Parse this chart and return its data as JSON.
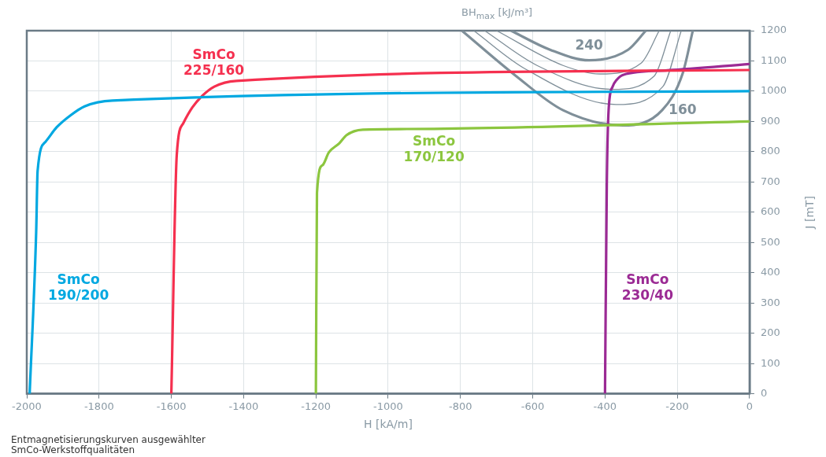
{
  "chart_data": {
    "type": "line",
    "xlabel": "H [kA/m]",
    "ylabel": "J [mT]",
    "xlim": [
      -2000,
      0
    ],
    "xticks": [
      -2000,
      -1800,
      -1600,
      -1400,
      -1200,
      -1000,
      -800,
      -600,
      -400,
      -200,
      0
    ],
    "ylim": [
      0,
      1200
    ],
    "yticks": [
      0,
      100,
      200,
      300,
      400,
      500,
      600,
      700,
      800,
      900,
      1000,
      1100,
      1200
    ],
    "grid": true,
    "legend": false,
    "marker": "none",
    "line_style": "solid",
    "series": [
      {
        "name": "SmCo\n190/200",
        "color": "#00a8e1",
        "x": [
          -1992,
          -1974,
          -1970,
          -1948,
          -1917,
          -1877,
          -1840,
          -1763,
          0
        ],
        "values": [
          0,
          534,
          737,
          833,
          881,
          922,
          950,
          969,
          1000
        ]
      },
      {
        "name": "SmCo\n225/160",
        "color": "#f5304f",
        "x": [
          -1600,
          -1585,
          -1567,
          -1542,
          -1514,
          -1481,
          -1420,
          0
        ],
        "values": [
          0,
          789,
          894,
          946,
          985,
          1015,
          1034,
          1070
        ]
      },
      {
        "name": "SmCo\n170/120",
        "color": "#8cc63f",
        "x": [
          -1200,
          -1197,
          -1182,
          -1164,
          -1135,
          -1115,
          -1070,
          -948,
          0
        ],
        "values": [
          0,
          664,
          755,
          798,
          828,
          855,
          873,
          875,
          900
        ]
      },
      {
        "name": "SmCo\n230/40",
        "color": "#9b2a94",
        "x": [
          -400,
          -395,
          -390,
          -379,
          -368,
          -350,
          -227,
          0
        ],
        "values": [
          0,
          694,
          937,
          1015,
          1037,
          1054,
          1069,
          1090
        ]
      },
      {
        "name": "240",
        "color": "#7f8f99",
        "x": [
          -660,
          -552,
          -444,
          -336,
          -287
        ],
        "values": [
          1200,
          1137,
          1102,
          1137,
          1200
        ]
      },
      {
        "color": "#7f8f99",
        "x": [
          -700,
          -516,
          -415,
          -300,
          -250
        ],
        "values": [
          1200,
          1085,
          1057,
          1093,
          1200
        ]
      },
      {
        "color": "#7f8f99",
        "x": [
          -733,
          -588,
          -380,
          -264,
          -218
        ],
        "values": [
          1200,
          1085,
          1006,
          1050,
          1200
        ]
      },
      {
        "color": "#7f8f99",
        "x": [
          -763,
          -624,
          -369,
          -240,
          -189
        ],
        "values": [
          1200,
          1076,
          956,
          1015,
          1200
        ]
      },
      {
        "name": "160",
        "color": "#7f8f99",
        "x": [
          -796,
          -646,
          -516,
          -351,
          -242,
          -185,
          -157
        ],
        "values": [
          1200,
          1050,
          937,
          887,
          937,
          1059,
          1200
        ]
      }
    ],
    "annotations": [
      "BH$_{max}$ [kJ/m³]",
      "Entmagnetisierungskurven ausgewählter\nSmCo-Werkstoffqualitäten"
    ]
  }
}
